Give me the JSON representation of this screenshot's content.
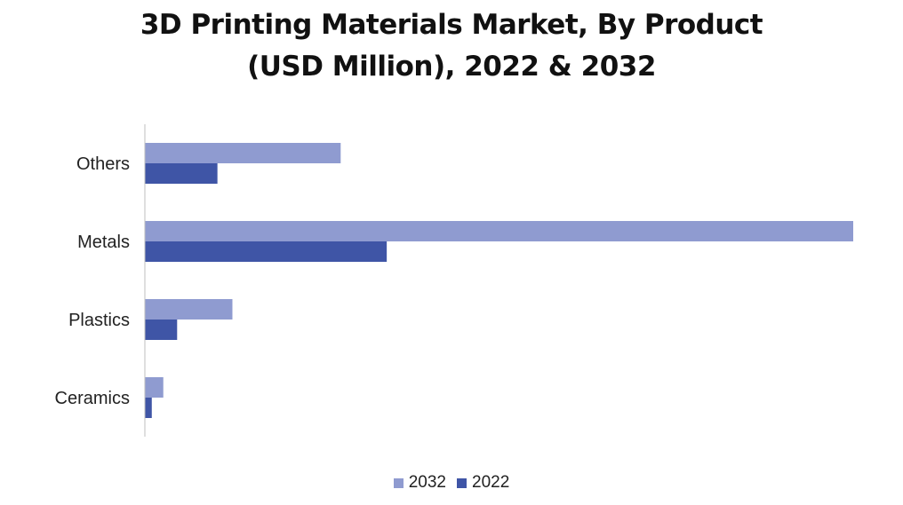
{
  "title_line1": "3D Printing Materials Market, By Product",
  "title_line2": "(USD Million), 2022 & 2032",
  "colors": {
    "series_2032": "#8f9bd0",
    "series_2022": "#3f55a6",
    "axis": "#bfbfbf"
  },
  "chart_data": {
    "type": "bar",
    "orientation": "horizontal",
    "title": "3D Printing Materials Market, By Product (USD Million), 2022 & 2032",
    "categories": [
      "Others",
      "Metals",
      "Plastics",
      "Ceramics"
    ],
    "series": [
      {
        "name": "2032",
        "values": [
          1700,
          6150,
          760,
          160
        ]
      },
      {
        "name": "2022",
        "values": [
          630,
          2100,
          280,
          60
        ]
      }
    ],
    "xlim": [
      0,
      6150
    ],
    "grid": false,
    "legend_position": "bottom"
  }
}
